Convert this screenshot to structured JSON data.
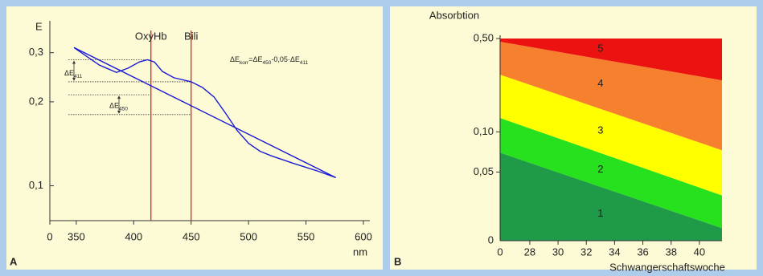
{
  "chart_data": [
    {
      "type": "line",
      "panel": "A",
      "ylabel": "E",
      "xlabel": "nm",
      "x_origin_label": "0",
      "xlim": [
        327,
        600
      ],
      "xticks": [
        350,
        400,
        450,
        500,
        550,
        600
      ],
      "ylim": [
        0.075,
        0.38
      ],
      "log_y": true,
      "yticks": [
        {
          "value": 0.1,
          "label": "0,1"
        },
        {
          "value": 0.2,
          "label": "0,2"
        },
        {
          "value": 0.3,
          "label": "0,3"
        }
      ],
      "series": [
        {
          "color": "#1a1ad6",
          "x": [
            348,
            370,
            385,
            395,
            405,
            412,
            418,
            425,
            435,
            450,
            460,
            470,
            480,
            490,
            500,
            510,
            520,
            540,
            560,
            576
          ],
          "values": [
            0.313,
            0.271,
            0.255,
            0.264,
            0.278,
            0.283,
            0.278,
            0.257,
            0.244,
            0.236,
            0.225,
            0.208,
            0.182,
            0.158,
            0.142,
            0.133,
            0.128,
            0.12,
            0.113,
            0.107
          ]
        },
        {
          "color": "#1a1ad6",
          "x": [
            348,
            576
          ],
          "values": [
            0.313,
            0.107
          ]
        }
      ],
      "reference_lines": [
        {
          "label": "OxyHb",
          "x": 415,
          "color": "#e02424"
        },
        {
          "label": "Bili",
          "x": 450,
          "color": "#e02424"
        }
      ],
      "levels": [
        {
          "value": 0.283,
          "at": 415
        },
        {
          "value": 0.236,
          "at": 450
        },
        {
          "value": 0.212,
          "at": 415
        },
        {
          "value": 0.18,
          "at": 450
        }
      ],
      "annotations": [
        {
          "text": "ΔE",
          "sub": "411"
        },
        {
          "text": "ΔE",
          "sub": "450"
        }
      ],
      "formula": [
        {
          "text": "ΔE"
        },
        {
          "text": "korr",
          "sub": true
        },
        {
          "text": "=ΔE"
        },
        {
          "text": "450",
          "sub": true
        },
        {
          "text": "-0,05·ΔE"
        },
        {
          "text": "411",
          "sub": true
        }
      ]
    },
    {
      "type": "area",
      "panel": "B",
      "ylabel": "Absorbtion",
      "xlabel": "Schwangerschaftswoche",
      "x_origin_label": "0",
      "y_origin_label": "0",
      "xlim": [
        25.9,
        41.6
      ],
      "xticks": [
        28,
        30,
        32,
        34,
        36,
        38,
        40
      ],
      "ylim": [
        0.0153,
        0.5
      ],
      "log_y": true,
      "yticks": [
        {
          "value": 0.05,
          "label": "0,05"
        },
        {
          "value": 0.1,
          "label": "0,10"
        },
        {
          "value": 0.5,
          "label": "0,50"
        }
      ],
      "x": [
        25.9,
        41.6
      ],
      "series": [
        {
          "name": "1",
          "color": "#1f9a48",
          "values": [
            0.0698,
            0.019
          ]
        },
        {
          "name": "2",
          "color": "#27e01e",
          "values": [
            0.127,
            0.0334
          ]
        },
        {
          "name": "3",
          "color": "#ffff00",
          "values": [
            0.268,
            0.0728
          ]
        },
        {
          "name": "4",
          "color": "#f7802f",
          "values": [
            0.473,
            0.243
          ]
        },
        {
          "name": "5",
          "color": "#ec1212",
          "values": [
            0.5,
            0.5
          ]
        }
      ]
    }
  ]
}
